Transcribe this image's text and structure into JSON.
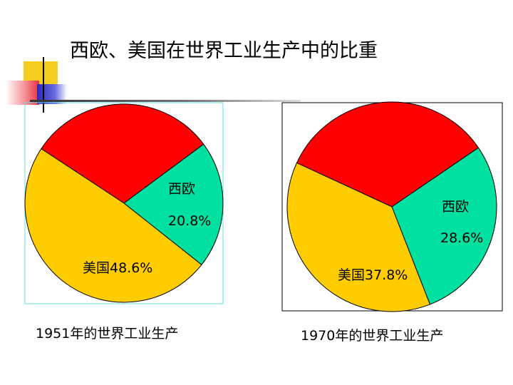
{
  "title": "西欧、美国在世界工业生产中的比重",
  "colors": {
    "other": "#ff0000",
    "west_europe": "#00e0a0",
    "usa": "#ffcc00"
  },
  "chart_data": [
    {
      "type": "pie",
      "caption": "1951年的世界工业生产",
      "slices": [
        {
          "label": "",
          "value": 30.6,
          "color": "#ff0000"
        },
        {
          "label": "西欧",
          "value": 20.8,
          "display": "20.8%",
          "color": "#00e0a0"
        },
        {
          "label": "美国",
          "value": 48.6,
          "display": "美国48.6%",
          "color": "#ffcc00"
        }
      ]
    },
    {
      "type": "pie",
      "caption": "1970年的世界工业生产",
      "slices": [
        {
          "label": "",
          "value": 33.6,
          "color": "#ff0000"
        },
        {
          "label": "西欧",
          "value": 28.6,
          "display": "28.6%",
          "color": "#00e0a0"
        },
        {
          "label": "美国",
          "value": 37.8,
          "display": "美国37.8%",
          "color": "#ffcc00"
        }
      ]
    }
  ]
}
